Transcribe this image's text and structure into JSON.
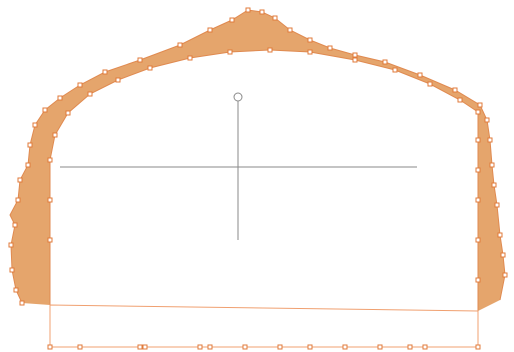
{
  "editor": {
    "name": "tunnel-section-editor",
    "colors": {
      "background": "#ffffff",
      "overbreak_fill": "#e5a56c",
      "outline_stroke": "#e08a50",
      "vertex_stroke": "#e07a3a",
      "axis_stroke": "#8a8a8a",
      "boundary_stroke": "#f0a070"
    },
    "icons": {
      "center_marker": "center-circle-icon",
      "vertex_handle": "square-handle-icon"
    }
  }
}
